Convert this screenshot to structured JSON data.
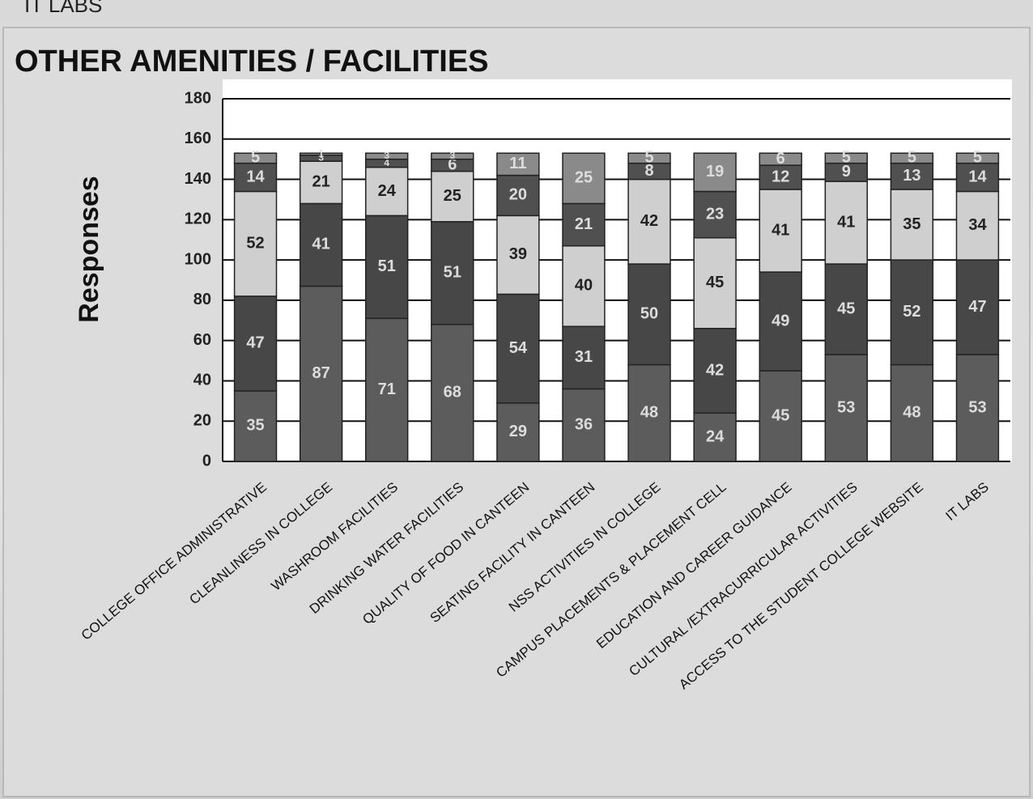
{
  "header_text": "IT LABS",
  "chart_data": {
    "type": "stacked_bar",
    "title": "OTHER AMENITIES / FACILITIES",
    "ylabel": "Responses",
    "categories": [
      "COLLEGE OFFICE ADMINISTRATIVE",
      "CLEANLINESS IN COLLEGE",
      "WASHROOM FACILITIES",
      "DRINKING WATER FACILITIES",
      "QUALITY OF FOOD IN CANTEEN",
      "SEATING FACILITY IN CANTEEN",
      "NSS ACTIVITIES IN COLLEGE",
      "CAMPUS PLACEMENTS & PLACEMENT CELL",
      "EDUCATION AND CAREER GUIDANCE",
      "CULTURAL /EXTRACURRICULAR ACTIVITIES",
      "ACCESS TO THE STUDENT COLLEGE WEBSITE",
      "IT LABS"
    ],
    "series": [
      {
        "color": "#5c5c5c",
        "values": [
          35,
          87,
          71,
          68,
          29,
          36,
          48,
          24,
          45,
          53,
          48,
          53
        ]
      },
      {
        "color": "#474747",
        "values": [
          47,
          41,
          51,
          51,
          54,
          31,
          50,
          42,
          49,
          45,
          52,
          47
        ]
      },
      {
        "color": "#cfcfcf",
        "values": [
          52,
          21,
          24,
          25,
          39,
          40,
          42,
          45,
          41,
          41,
          35,
          34
        ]
      },
      {
        "color": "#505050",
        "values": [
          14,
          3,
          4,
          6,
          20,
          21,
          8,
          23,
          12,
          9,
          13,
          14
        ]
      },
      {
        "color": "#8a8a8a",
        "values": [
          5,
          1,
          3,
          3,
          11,
          25,
          5,
          19,
          6,
          5,
          5,
          5
        ]
      }
    ],
    "ylim": [
      0,
      180
    ],
    "yticks": [
      0,
      20,
      40,
      60,
      80,
      100,
      120,
      140,
      160,
      180
    ],
    "grid": true
  }
}
